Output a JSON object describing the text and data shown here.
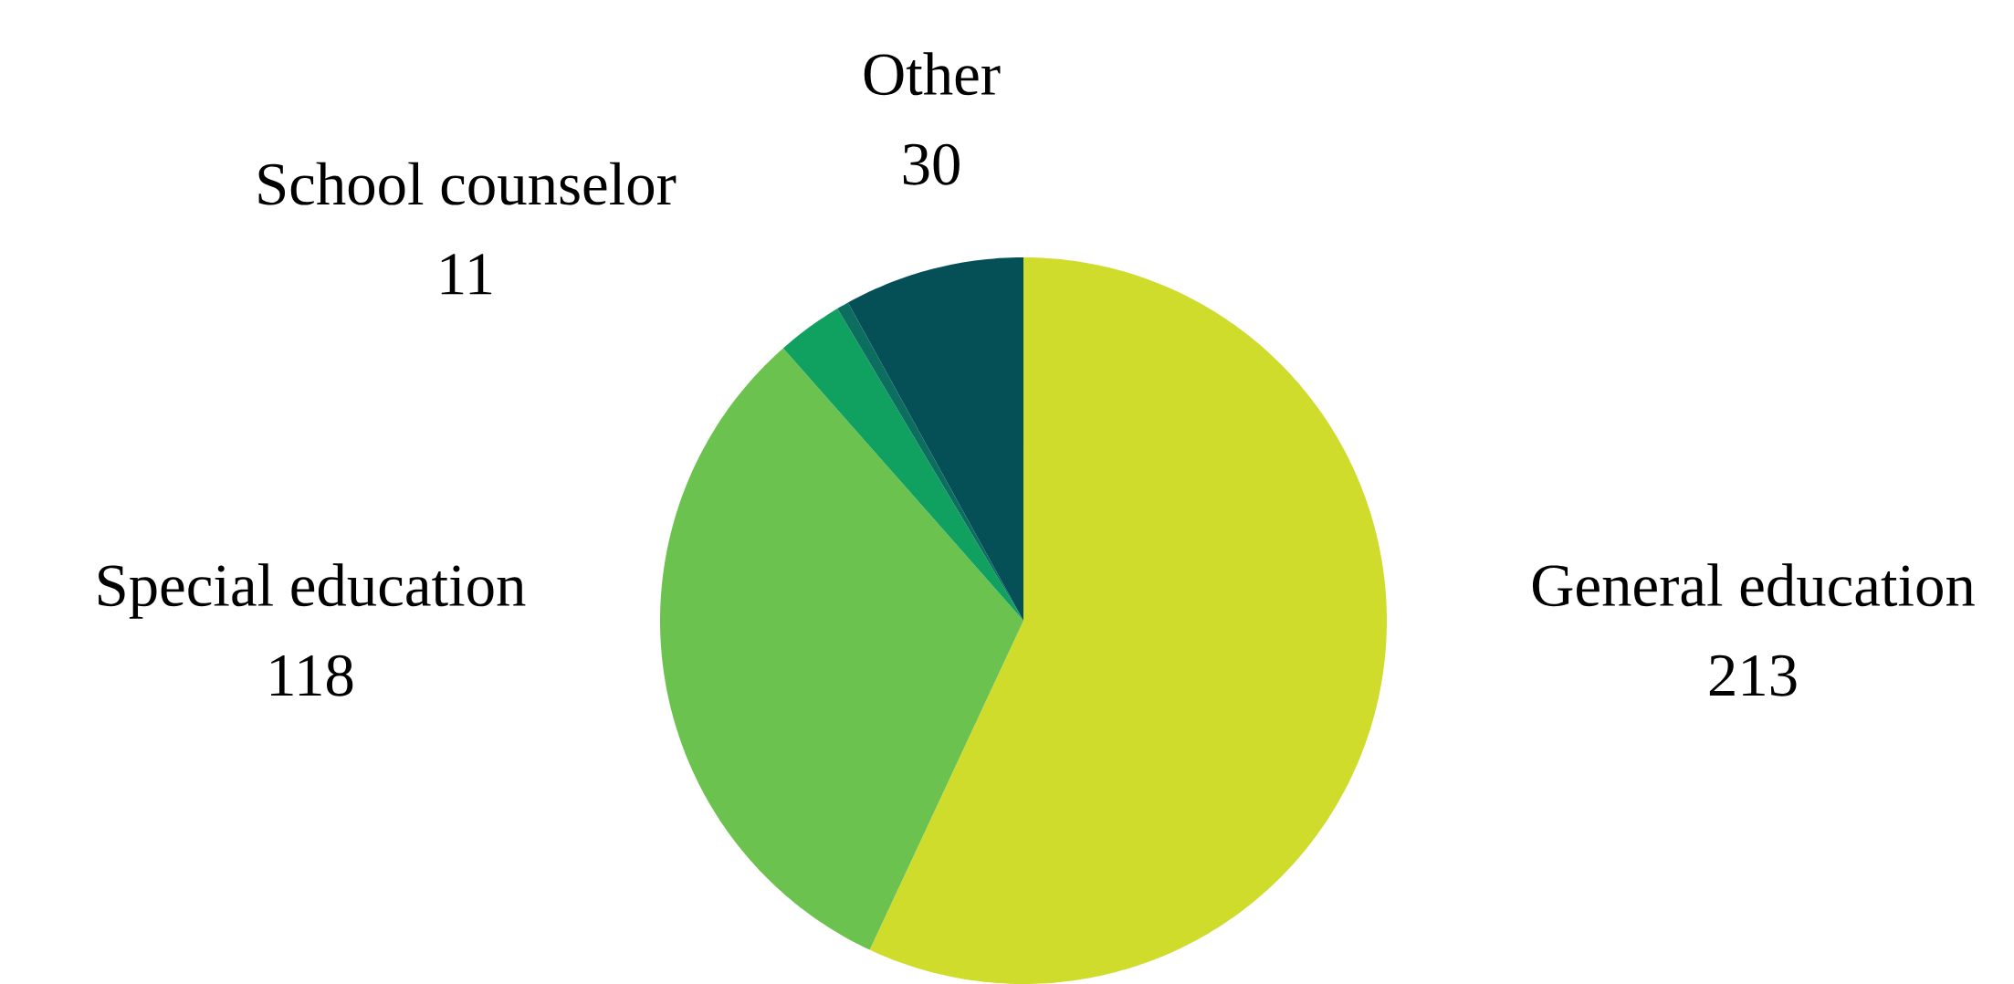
{
  "chart_data": {
    "type": "pie",
    "categories": [
      "General education",
      "Special education",
      "School counselor",
      null,
      "Other"
    ],
    "values": [
      213,
      118,
      11,
      2,
      30
    ],
    "colors": [
      "#d0dc2c",
      "#6cc24f",
      "#10a060",
      "#0b6e5e",
      "#054f57"
    ],
    "value_labels": [
      "213",
      "118",
      "11",
      null,
      "30"
    ]
  }
}
